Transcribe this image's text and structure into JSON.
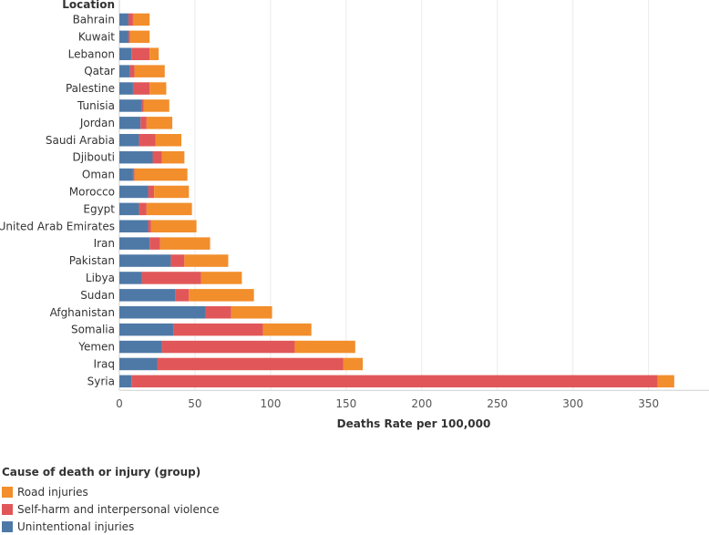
{
  "chart_data": {
    "type": "bar",
    "orientation": "horizontal",
    "stacked": true,
    "y_header": "Location",
    "xlabel": "Deaths Rate per 100,000",
    "xlim": [
      0,
      390
    ],
    "xticks": [
      0,
      50,
      100,
      150,
      200,
      250,
      300,
      350
    ],
    "grid": true,
    "categories": [
      "Bahrain",
      "Kuwait",
      "Lebanon",
      "Qatar",
      "Palestine",
      "Tunisia",
      "Jordan",
      "Saudi Arabia",
      "Djibouti",
      "Oman",
      "Morocco",
      "Egypt",
      "United Arab Emirates",
      "Iran",
      "Pakistan",
      "Libya",
      "Sudan",
      "Afghanistan",
      "Somalia",
      "Yemen",
      "Iraq",
      "Syria"
    ],
    "series": [
      {
        "name": "Unintentional injuries",
        "color": "#4e79a7",
        "values": [
          6,
          6,
          8,
          7,
          9,
          15,
          14,
          13,
          22,
          9,
          19,
          13,
          19,
          20,
          34,
          15,
          37,
          57,
          36,
          28,
          25,
          8
        ]
      },
      {
        "name": "Self-harm and interpersonal violence",
        "color": "#e15759",
        "values": [
          3,
          1,
          12,
          3,
          11,
          1,
          4,
          11,
          6,
          1,
          4,
          5,
          2,
          7,
          9,
          39,
          9,
          17,
          59,
          88,
          123,
          348
        ]
      },
      {
        "name": "Road injuries",
        "color": "#f28e2b",
        "values": [
          11,
          13,
          6,
          20,
          11,
          17,
          17,
          17,
          15,
          35,
          23,
          30,
          30,
          33,
          29,
          27,
          43,
          27,
          32,
          40,
          13,
          11
        ]
      }
    ],
    "legend": {
      "title": "Cause of death or injury (group)",
      "position": "bottom-left",
      "items": [
        "Road injuries",
        "Self-harm and interpersonal violence",
        "Unintentional injuries"
      ]
    }
  }
}
